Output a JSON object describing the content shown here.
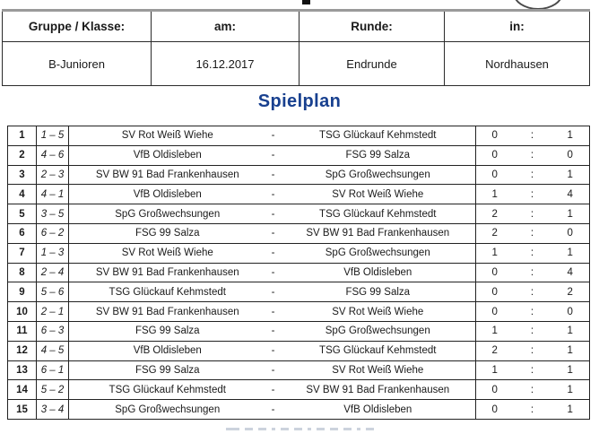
{
  "colors": {
    "section_title_blue": "#18408f",
    "table_border": "#222222",
    "info_table_top_border_gray": "#9a9a9a"
  },
  "info_table": {
    "headers": [
      "Gruppe / Klasse:",
      "am:",
      "Runde:",
      "in:"
    ],
    "values": [
      "B-Junioren",
      "16.12.2017",
      "Endrunde",
      "Nordhausen"
    ]
  },
  "section_title": "Spielplan",
  "matches": {
    "rows": [
      {
        "nr": "1",
        "pairing": "1 – 5",
        "home": "SV Rot Weiß Wiehe",
        "sep": "-",
        "away": "TSG Glückauf Kehmstedt",
        "score_home": "0",
        "colon": ":",
        "score_away": "1"
      },
      {
        "nr": "2",
        "pairing": "4 – 6",
        "home": "VfB Oldisleben",
        "sep": "-",
        "away": "FSG 99 Salza",
        "score_home": "0",
        "colon": ":",
        "score_away": "0"
      },
      {
        "nr": "3",
        "pairing": "2 – 3",
        "home": "SV BW 91 Bad Frankenhausen",
        "sep": "-",
        "away": "SpG Großwechsungen",
        "score_home": "0",
        "colon": ":",
        "score_away": "1"
      },
      {
        "nr": "4",
        "pairing": "4 – 1",
        "home": "VfB Oldisleben",
        "sep": "-",
        "away": "SV Rot Weiß Wiehe",
        "score_home": "1",
        "colon": ":",
        "score_away": "4"
      },
      {
        "nr": "5",
        "pairing": "3 – 5",
        "home": "SpG Großwechsungen",
        "sep": "-",
        "away": "TSG Glückauf Kehmstedt",
        "score_home": "2",
        "colon": ":",
        "score_away": "1"
      },
      {
        "nr": "6",
        "pairing": "6 – 2",
        "home": "FSG 99 Salza",
        "sep": "-",
        "away": "SV BW 91 Bad Frankenhausen",
        "score_home": "2",
        "colon": ":",
        "score_away": "0"
      },
      {
        "nr": "7",
        "pairing": "1 – 3",
        "home": "SV Rot Weiß Wiehe",
        "sep": "-",
        "away": "SpG Großwechsungen",
        "score_home": "1",
        "colon": ":",
        "score_away": "1"
      },
      {
        "nr": "8",
        "pairing": "2 – 4",
        "home": "SV BW 91 Bad Frankenhausen",
        "sep": "-",
        "away": "VfB Oldisleben",
        "score_home": "0",
        "colon": ":",
        "score_away": "4"
      },
      {
        "nr": "9",
        "pairing": "5 – 6",
        "home": "TSG Glückauf Kehmstedt",
        "sep": "-",
        "away": "FSG 99 Salza",
        "score_home": "0",
        "colon": ":",
        "score_away": "2"
      },
      {
        "nr": "10",
        "pairing": "2 – 1",
        "home": "SV BW 91 Bad Frankenhausen",
        "sep": "-",
        "away": "SV Rot Weiß Wiehe",
        "score_home": "0",
        "colon": ":",
        "score_away": "0"
      },
      {
        "nr": "11",
        "pairing": "6 – 3",
        "home": "FSG 99 Salza",
        "sep": "-",
        "away": "SpG Großwechsungen",
        "score_home": "1",
        "colon": ":",
        "score_away": "1"
      },
      {
        "nr": "12",
        "pairing": "4 – 5",
        "home": "VfB Oldisleben",
        "sep": "-",
        "away": "TSG Glückauf Kehmstedt",
        "score_home": "2",
        "colon": ":",
        "score_away": "1"
      },
      {
        "nr": "13",
        "pairing": "6 – 1",
        "home": "FSG 99 Salza",
        "sep": "-",
        "away": "SV Rot Weiß Wiehe",
        "score_home": "1",
        "colon": ":",
        "score_away": "1"
      },
      {
        "nr": "14",
        "pairing": "5 – 2",
        "home": "TSG Glückauf Kehmstedt",
        "sep": "-",
        "away": "SV BW 91 Bad Frankenhausen",
        "score_home": "0",
        "colon": ":",
        "score_away": "1"
      },
      {
        "nr": "15",
        "pairing": "3 – 4",
        "home": "SpG Großwechsungen",
        "sep": "-",
        "away": "VfB Oldisleben",
        "score_home": "0",
        "colon": ":",
        "score_away": "1"
      }
    ]
  }
}
